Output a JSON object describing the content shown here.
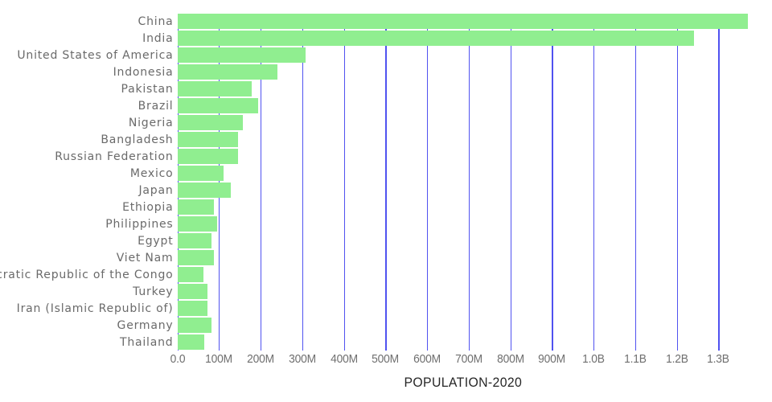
{
  "chart_data": {
    "type": "bar",
    "orientation": "horizontal",
    "title": "",
    "xlabel": "POPULATION-2020",
    "ylabel": "",
    "categories": [
      "China",
      "India",
      "United States of America",
      "Indonesia",
      "Pakistan",
      "Brazil",
      "Nigeria",
      "Bangladesh",
      "Russian Federation",
      "Mexico",
      "Japan",
      "Ethiopia",
      "Philippines",
      "Egypt",
      "Viet Nam",
      "Democratic Republic of the Congo",
      "Turkey",
      "Iran (Islamic Republic of)",
      "Germany",
      "Thailand"
    ],
    "values_millions": [
      1371,
      1242,
      308,
      241,
      179,
      194,
      157,
      146,
      145,
      112,
      128,
      88,
      96,
      82,
      88,
      63,
      72,
      73,
      82,
      65
    ],
    "value_unit": "persons (millions)",
    "x_ticks": [
      "0.0",
      "100M",
      "200M",
      "300M",
      "400M",
      "500M",
      "600M",
      "700M",
      "800M",
      "900M",
      "1.0B",
      "1.1B",
      "1.2B",
      "1.3B"
    ],
    "x_tick_values_millions": [
      0,
      100,
      200,
      300,
      400,
      500,
      600,
      700,
      800,
      900,
      1000,
      1100,
      1200,
      1300
    ],
    "xlim_millions": [
      0,
      1371
    ],
    "grid": "vertical",
    "legend": "none",
    "bar_color": "#90EE90",
    "gridline_color": "#5052F0",
    "category_label_color": "#6A6A6A",
    "tick_label_color": "#6F6F6F",
    "axis_title_color": "#262626",
    "background_color": "#FFFFFF"
  }
}
